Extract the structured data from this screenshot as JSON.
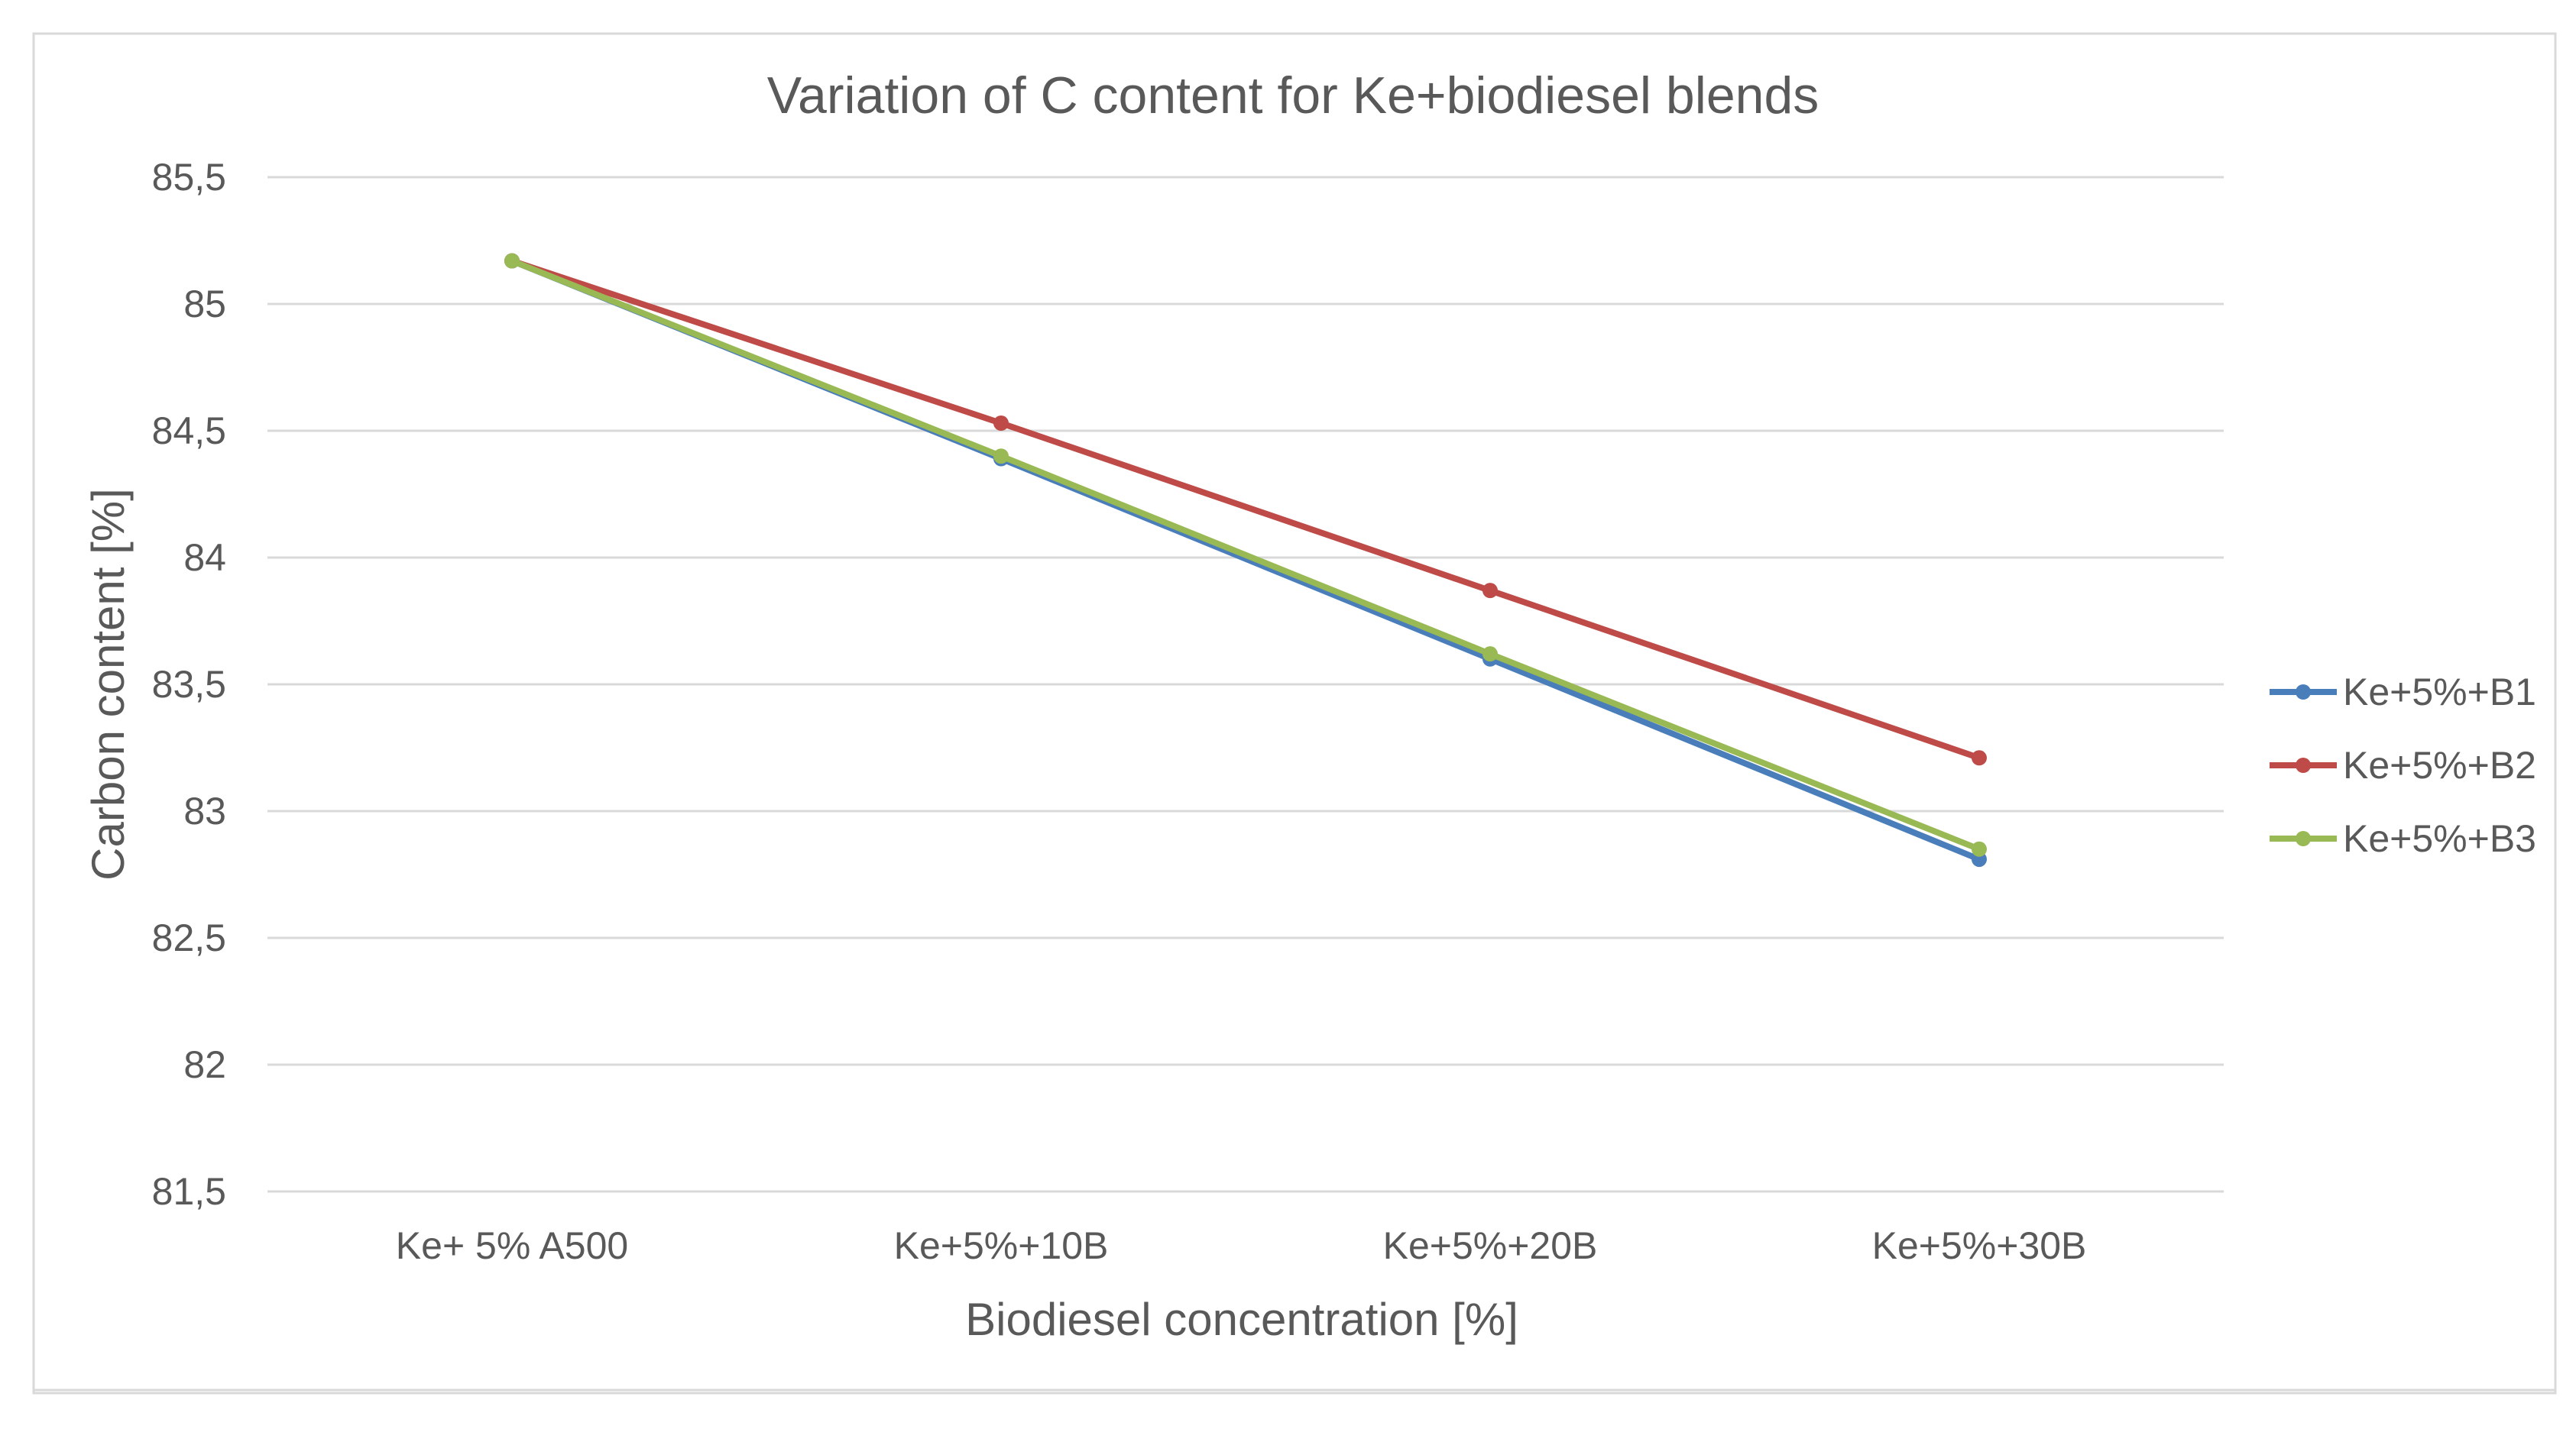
{
  "chart_data": {
    "type": "line",
    "title": "Variation of C content for Ke+biodiesel blends",
    "xlabel": "Biodiesel concentration [%]",
    "ylabel": "Carbon content [%]",
    "categories": [
      "Ke+ 5% A500",
      "Ke+5%+10B",
      "Ke+5%+20B",
      "Ke+5%+30B"
    ],
    "ylim": [
      81.5,
      85.5
    ],
    "yticks": [
      81.5,
      82,
      82.5,
      83,
      83.5,
      84,
      84.5,
      85,
      85.5
    ],
    "ytick_labels": [
      "81,5",
      "82",
      "82,5",
      "83",
      "83,5",
      "84",
      "84,5",
      "85",
      "85,5"
    ],
    "grid": true,
    "legend_position": "right",
    "series": [
      {
        "name": "Ke+5%+B1",
        "color": "#4a7ebb",
        "values": [
          85.17,
          84.39,
          83.6,
          82.81
        ]
      },
      {
        "name": "Ke+5%+B2",
        "color": "#be4b48",
        "values": [
          85.17,
          84.53,
          83.87,
          83.21
        ]
      },
      {
        "name": "Ke+5%+B3",
        "color": "#98b954",
        "values": [
          85.17,
          84.4,
          83.62,
          82.85
        ]
      }
    ]
  }
}
